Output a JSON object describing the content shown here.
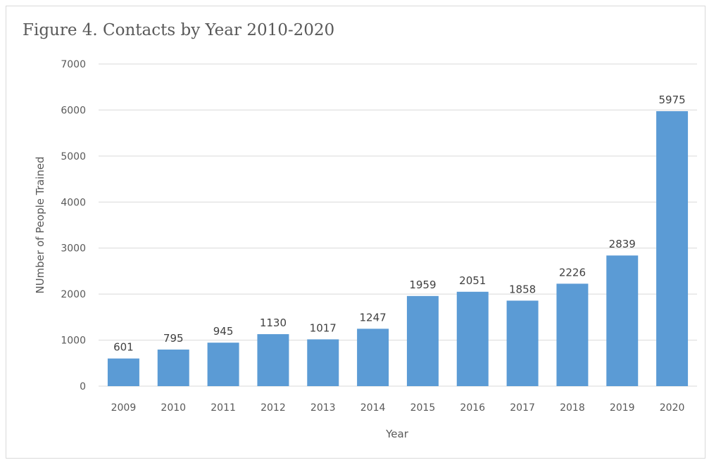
{
  "chart_data": {
    "type": "bar",
    "title": "Figure 4. Contacts by Year 2010-2020",
    "xlabel": "Year",
    "ylabel": "NUmber of People Trained",
    "categories": [
      "2009",
      "2010",
      "2011",
      "2012",
      "2013",
      "2014",
      "2015",
      "2016",
      "2017",
      "2018",
      "2019",
      "2020"
    ],
    "values": [
      601,
      795,
      945,
      1130,
      1017,
      1247,
      1959,
      2051,
      1858,
      2226,
      2839,
      5975
    ],
    "ylim": [
      0,
      7000
    ],
    "yticks": [
      0,
      1000,
      2000,
      3000,
      4000,
      5000,
      6000,
      7000
    ],
    "grid": true,
    "legend": "none",
    "data_labels": true,
    "bar_color": "#5b9bd5",
    "grid_color": "#d9d9d9"
  }
}
